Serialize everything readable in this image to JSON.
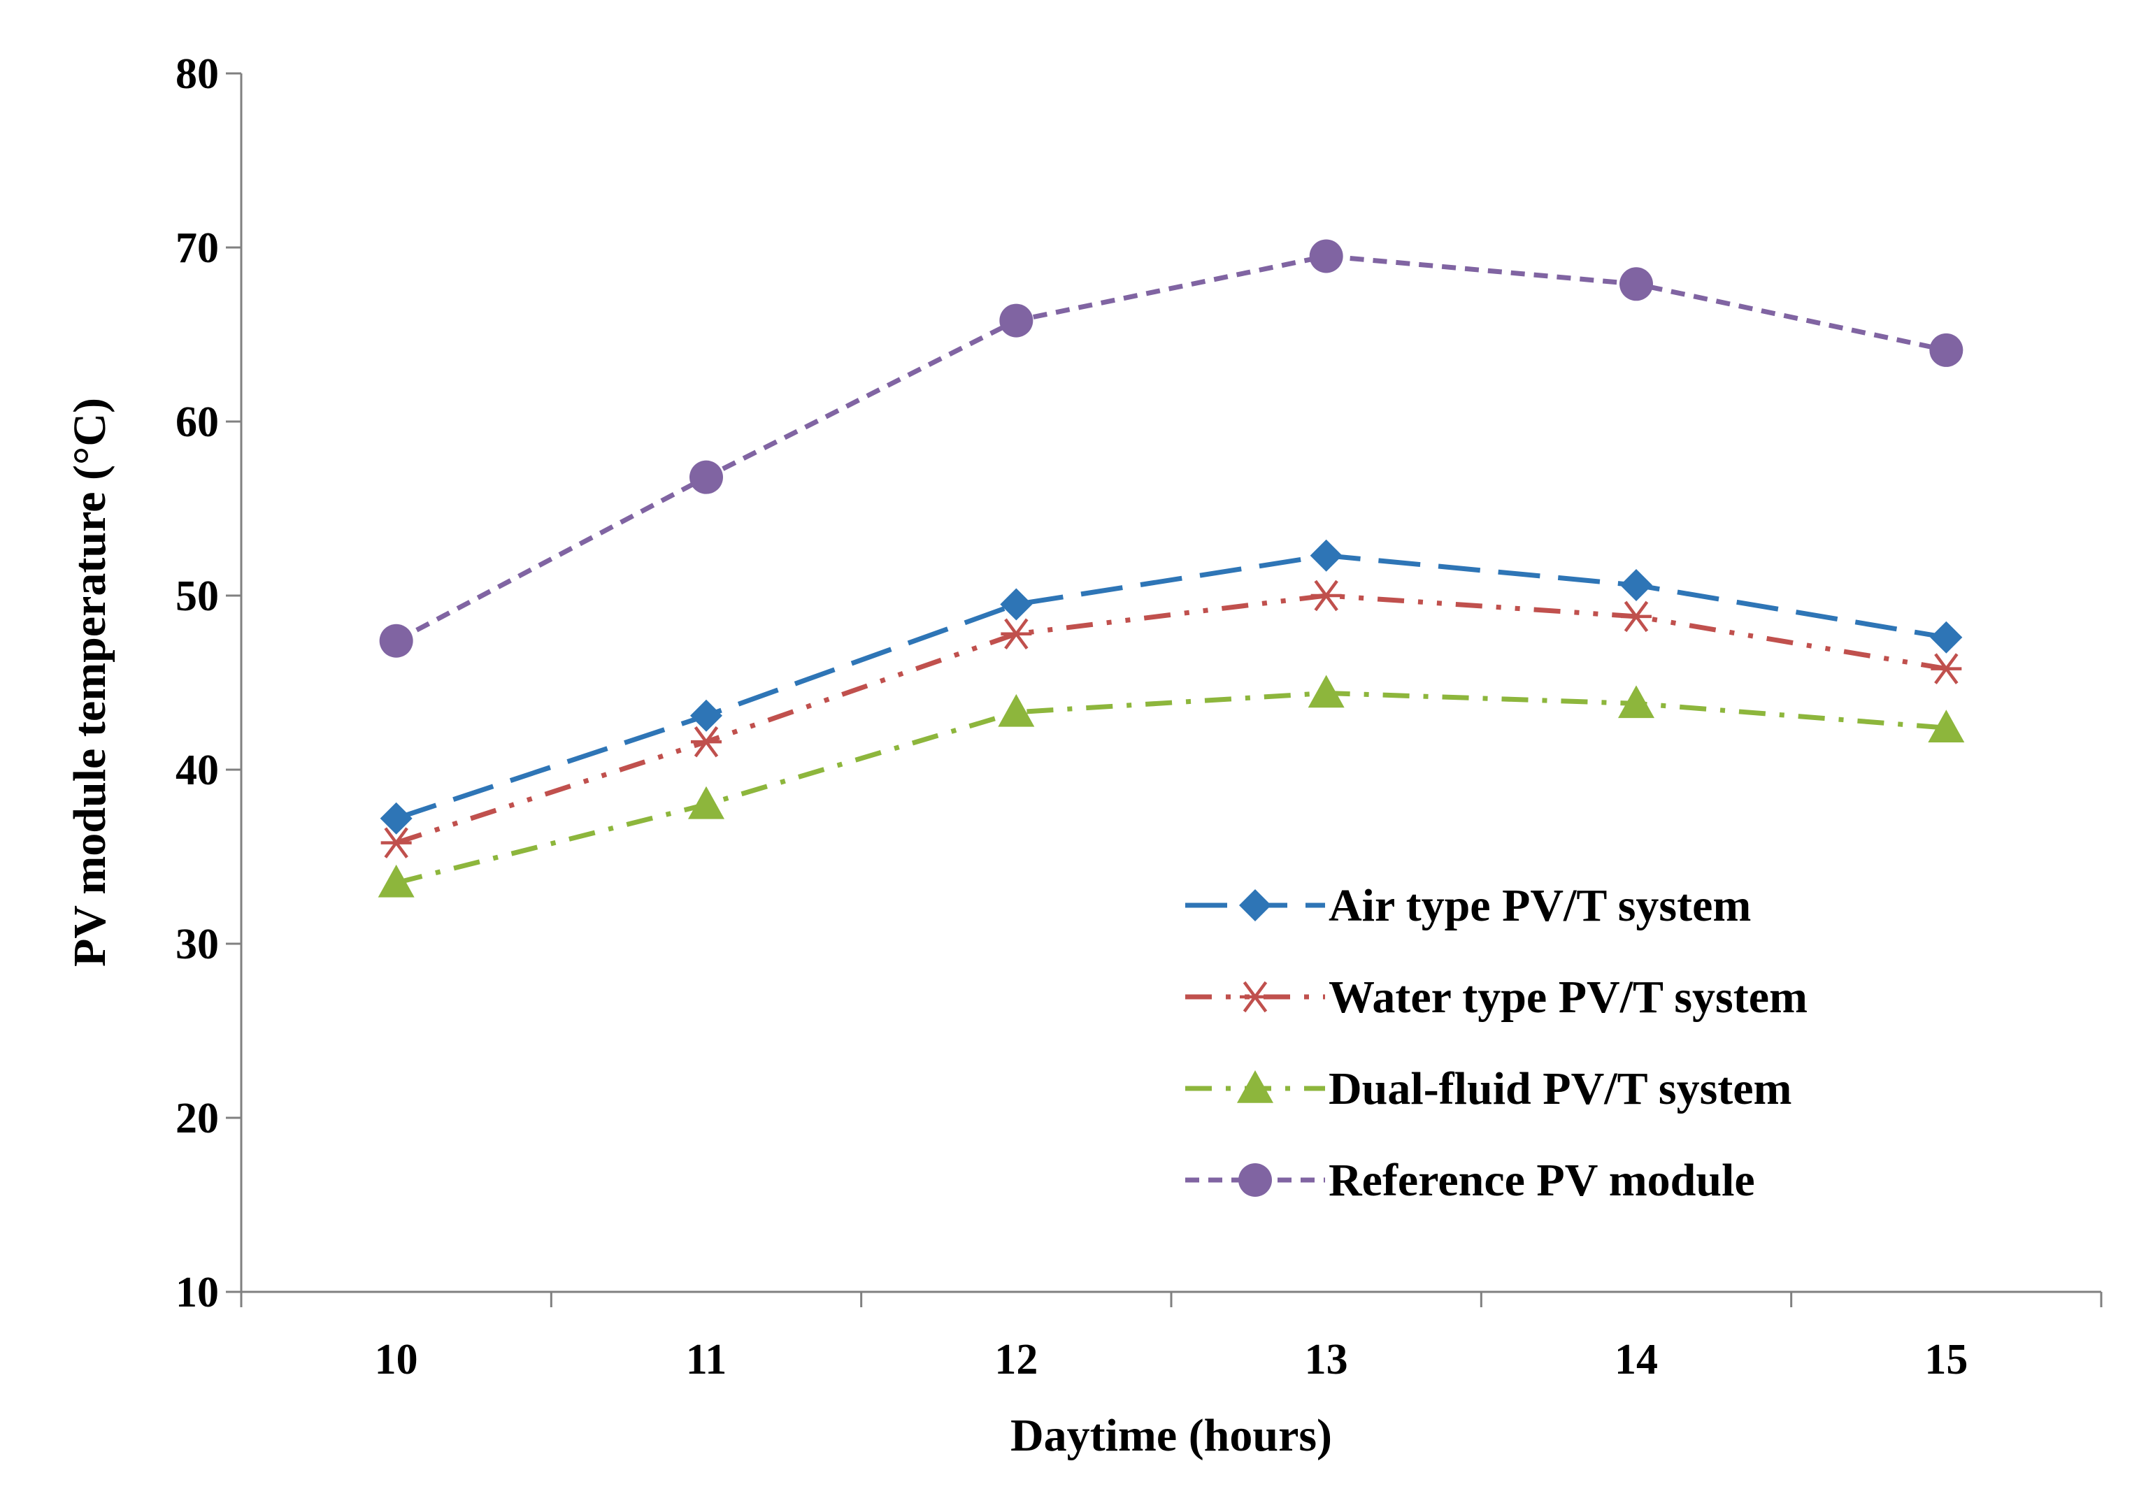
{
  "chart_data": {
    "type": "line",
    "title": "",
    "xlabel": "Daytime (hours)",
    "ylabel": "PV module temperature  (°C)",
    "categories": [
      "10",
      "11",
      "12",
      "13",
      "14",
      "15"
    ],
    "ylim": [
      10,
      80
    ],
    "yticks": [
      "10",
      "20",
      "30",
      "40",
      "50",
      "60",
      "70",
      "80"
    ],
    "grid": false,
    "legend_position": "lower-right inside plot",
    "series": [
      {
        "name": "Air type  PV/T system",
        "values": [
          37.2,
          43.1,
          49.5,
          52.3,
          50.6,
          47.6
        ],
        "color": "#2E75B6",
        "marker": "diamond",
        "dash": "long-dash"
      },
      {
        "name": "Water type  PV/T system",
        "values": [
          35.8,
          41.6,
          47.8,
          50.0,
          48.8,
          45.8
        ],
        "color": "#C0504D",
        "marker": "asterisk",
        "dash": "dash-dot-dot"
      },
      {
        "name": "Dual-fluid PV/T system",
        "values": [
          33.5,
          38.0,
          43.3,
          44.4,
          43.8,
          42.4
        ],
        "color": "#8DB63C",
        "marker": "triangle",
        "dash": "dash-dot"
      },
      {
        "name": "Reference  PV module",
        "values": [
          47.4,
          56.8,
          65.8,
          69.5,
          67.9,
          64.1
        ],
        "color": "#8064A2",
        "marker": "circle",
        "dash": "short-dash"
      }
    ]
  }
}
